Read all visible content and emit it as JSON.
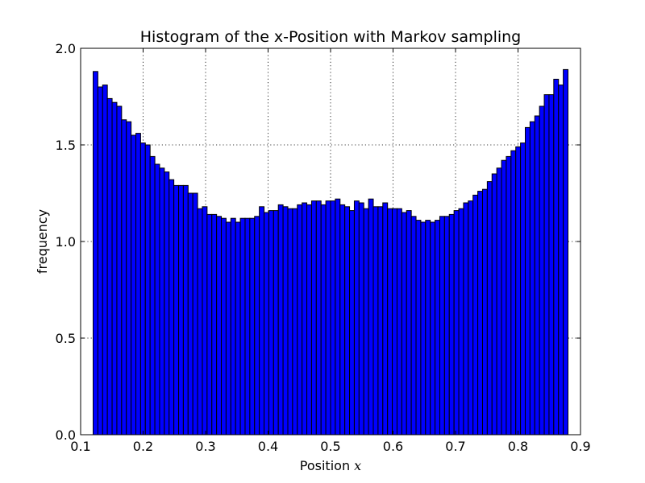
{
  "chart_data": {
    "type": "bar",
    "title": "Histogram of the x-Position with Markov sampling",
    "xlabel": "Position",
    "xlabel_math": "x",
    "ylabel": "frequency",
    "xlim": [
      0.1,
      0.9
    ],
    "ylim": [
      0.0,
      2.0
    ],
    "xticks": [
      "0.1",
      "0.2",
      "0.3",
      "0.4",
      "0.5",
      "0.6",
      "0.7",
      "0.8",
      "0.9"
    ],
    "yticks": [
      "0.0",
      "0.5",
      "1.0",
      "1.5",
      "2.0"
    ],
    "grid": true,
    "bar_color": "#0000ff",
    "bins": {
      "start": 0.12,
      "end": 0.88,
      "values": [
        1.88,
        1.8,
        1.81,
        1.74,
        1.72,
        1.7,
        1.63,
        1.62,
        1.55,
        1.56,
        1.51,
        1.5,
        1.44,
        1.4,
        1.38,
        1.36,
        1.32,
        1.29,
        1.29,
        1.29,
        1.25,
        1.25,
        1.17,
        1.18,
        1.14,
        1.14,
        1.13,
        1.12,
        1.1,
        1.12,
        1.1,
        1.12,
        1.12,
        1.12,
        1.13,
        1.18,
        1.15,
        1.16,
        1.16,
        1.19,
        1.18,
        1.17,
        1.17,
        1.19,
        1.2,
        1.19,
        1.21,
        1.21,
        1.19,
        1.21,
        1.21,
        1.22,
        1.19,
        1.18,
        1.16,
        1.21,
        1.2,
        1.17,
        1.22,
        1.18,
        1.18,
        1.2,
        1.17,
        1.17,
        1.17,
        1.15,
        1.16,
        1.13,
        1.11,
        1.1,
        1.11,
        1.1,
        1.11,
        1.13,
        1.13,
        1.14,
        1.16,
        1.17,
        1.2,
        1.21,
        1.24,
        1.26,
        1.27,
        1.31,
        1.35,
        1.38,
        1.42,
        1.44,
        1.47,
        1.49,
        1.51,
        1.59,
        1.62,
        1.65,
        1.7,
        1.76,
        1.76,
        1.84,
        1.81,
        1.89
      ]
    }
  }
}
